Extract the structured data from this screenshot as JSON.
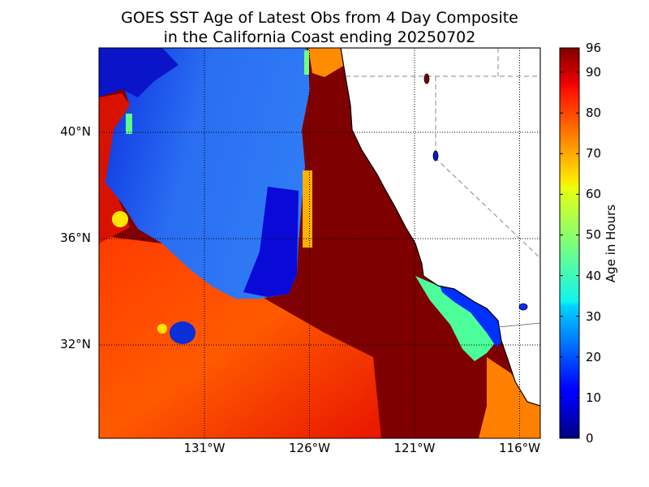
{
  "title_line1": "GOES SST Age of Latest Obs from 4 Day Composite",
  "title_line2": "in the California Coast ending 20250702",
  "map": {
    "lat_labels": [
      {
        "label": "40°N",
        "lat": 40
      },
      {
        "label": "36°N",
        "lat": 36
      },
      {
        "label": "32°N",
        "lat": 32
      }
    ],
    "lon_labels": [
      {
        "label": "131°W",
        "lon": -131
      },
      {
        "label": "126°W",
        "lon": -126
      },
      {
        "label": "121°W",
        "lon": -121
      },
      {
        "label": "116°W",
        "lon": -116
      }
    ],
    "grid": true
  },
  "colorbar": {
    "label": "Age in Hours",
    "colormap": "jet",
    "min": 0,
    "max": 96,
    "ticks": [
      "96",
      "90",
      "80",
      "70",
      "60",
      "50",
      "40",
      "30",
      "20",
      "10",
      "0"
    ],
    "tick_values": [
      96,
      90,
      80,
      70,
      60,
      50,
      40,
      30,
      20,
      10,
      0
    ]
  }
}
